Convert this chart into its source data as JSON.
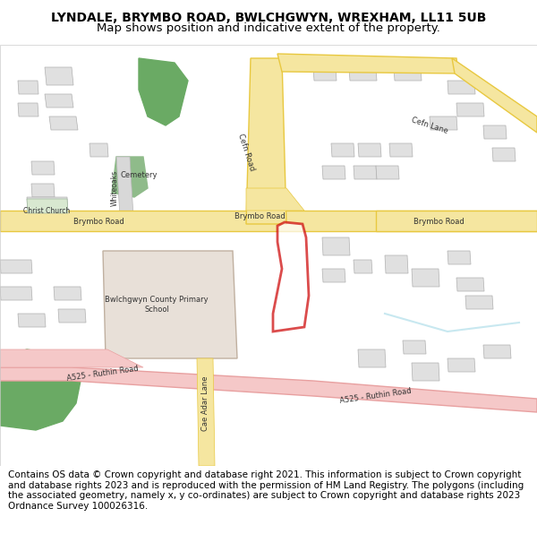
{
  "title_line1": "LYNDALE, BRYMBO ROAD, BWLCHGWYN, WREXHAM, LL11 5UB",
  "title_line2": "Map shows position and indicative extent of the property.",
  "footer": "Contains OS data © Crown copyright and database right 2021. This information is subject to Crown copyright and database rights 2023 and is reproduced with the permission of HM Land Registry. The polygons (including the associated geometry, namely x, y co-ordinates) are subject to Crown copyright and database rights 2023 Ordnance Survey 100026316.",
  "map_bg": "#f8f8f8",
  "road_yellow": "#f5e6a0",
  "road_yellow_border": "#e8c840",
  "road_pink": "#f5c8c8",
  "road_pink_border": "#e8a0a0",
  "road_gray": "#d8d8d8",
  "road_gray_border": "#b8b8b8",
  "building_fill": "#e0e0e0",
  "building_stroke": "#b0b0b0",
  "school_fill": "#e8e0d8",
  "green_fill": "#6aaa64",
  "green2_fill": "#8fbb8a",
  "property_stroke": "#cc0000",
  "property_fill": "#ffffff",
  "water_color": "#c8e8f0",
  "title_fontsize": 10,
  "footer_fontsize": 7.5
}
